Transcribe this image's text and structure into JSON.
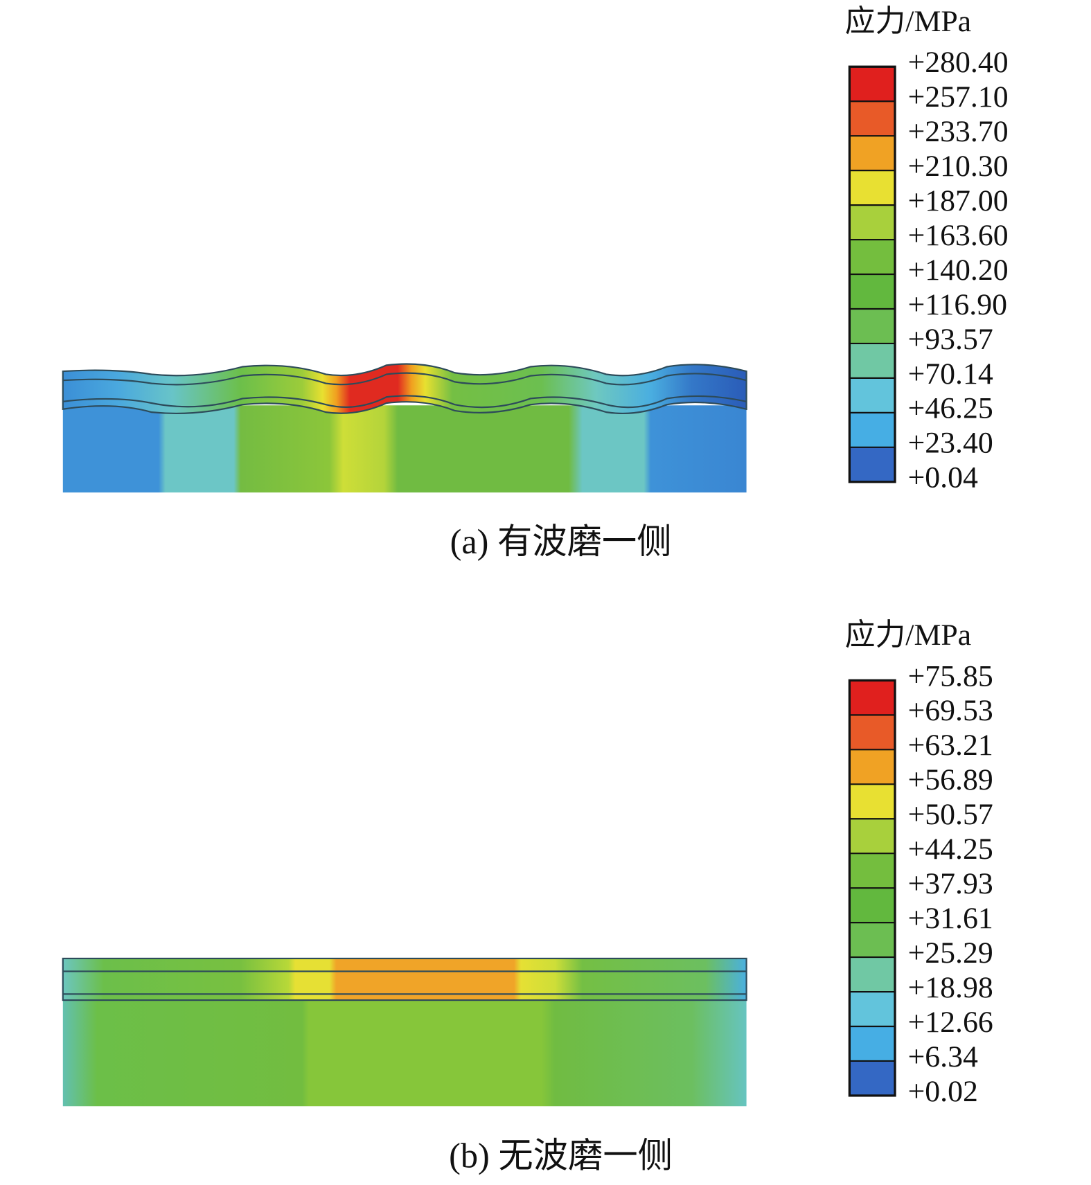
{
  "panels": [
    {
      "legend_title": "应力/MPa",
      "legend_labels": [
        "+280.40",
        "+257.10",
        "+233.70",
        "+210.30",
        "+187.00",
        "+163.60",
        "+140.20",
        "+116.90",
        "+93.57",
        "+70.14",
        "+46.25",
        "+23.40",
        "+0.04"
      ],
      "caption": "(a) 有波磨一侧"
    },
    {
      "legend_title": "应力/MPa",
      "legend_labels": [
        "+75.85",
        "+69.53",
        "+63.21",
        "+56.89",
        "+50.57",
        "+44.25",
        "+37.93",
        "+31.61",
        "+25.29",
        "+18.98",
        "+12.66",
        "+6.34",
        "+0.02"
      ],
      "caption": "(b) 无波磨一侧"
    }
  ]
}
